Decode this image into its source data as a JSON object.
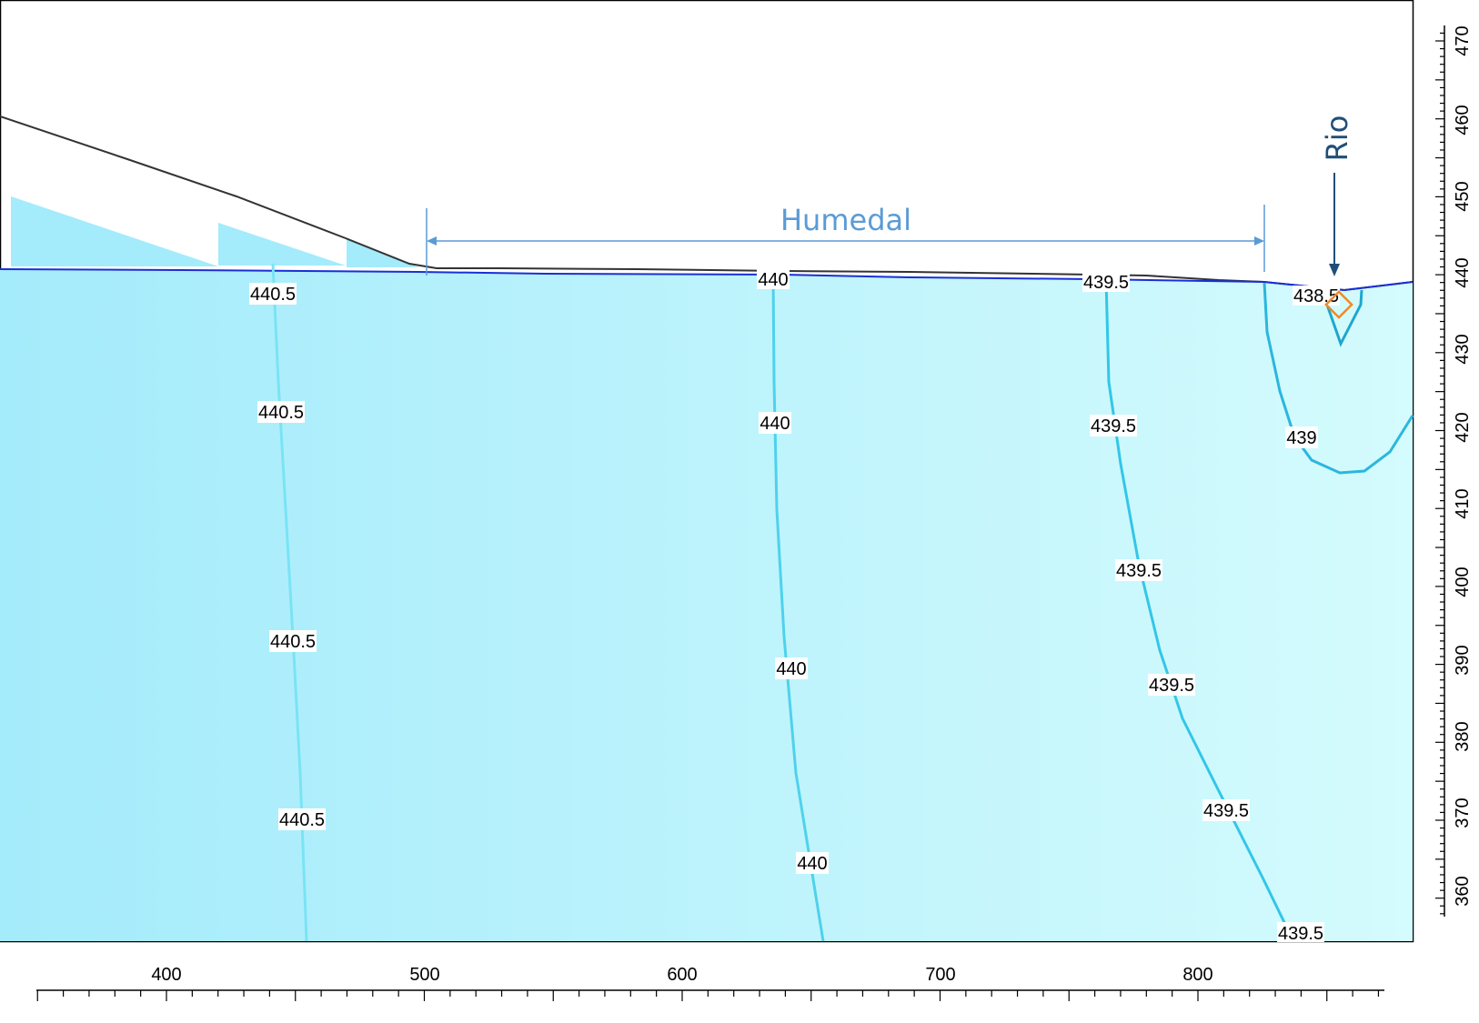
{
  "x_axis": {
    "ticks": [
      "400",
      "500",
      "600",
      "700",
      "800"
    ]
  },
  "y_axis": {
    "ticks": [
      "470",
      "460",
      "450",
      "440",
      "430",
      "420",
      "410",
      "400",
      "390",
      "380",
      "370",
      "360"
    ]
  },
  "annotations": {
    "wetland": {
      "text": "Humedal",
      "color": "#5b9bd5"
    },
    "river": {
      "text": "Rio",
      "color": "#1f4e79"
    }
  },
  "contours": [
    {
      "level": "440.5",
      "labels": [
        "440.5",
        "440.5",
        "440.5",
        "440.5"
      ]
    },
    {
      "level": "440",
      "labels": [
        "440",
        "440",
        "440",
        "440"
      ]
    },
    {
      "level": "439.5",
      "labels": [
        "439.5",
        "439.5",
        "439.5",
        "439.5",
        "439.5",
        "439.5"
      ]
    },
    {
      "level": "439",
      "labels": [
        "439"
      ]
    },
    {
      "level": "438.5",
      "labels": [
        "438.5"
      ]
    }
  ],
  "colors": {
    "head_fill_left": "#a4ebfb",
    "head_fill_right": "#d4fbfd",
    "contour_line": "#33c6e8",
    "water_table": "#1a2fd6",
    "ground_surface": "#333333",
    "observation_marker": "#f08a24"
  }
}
